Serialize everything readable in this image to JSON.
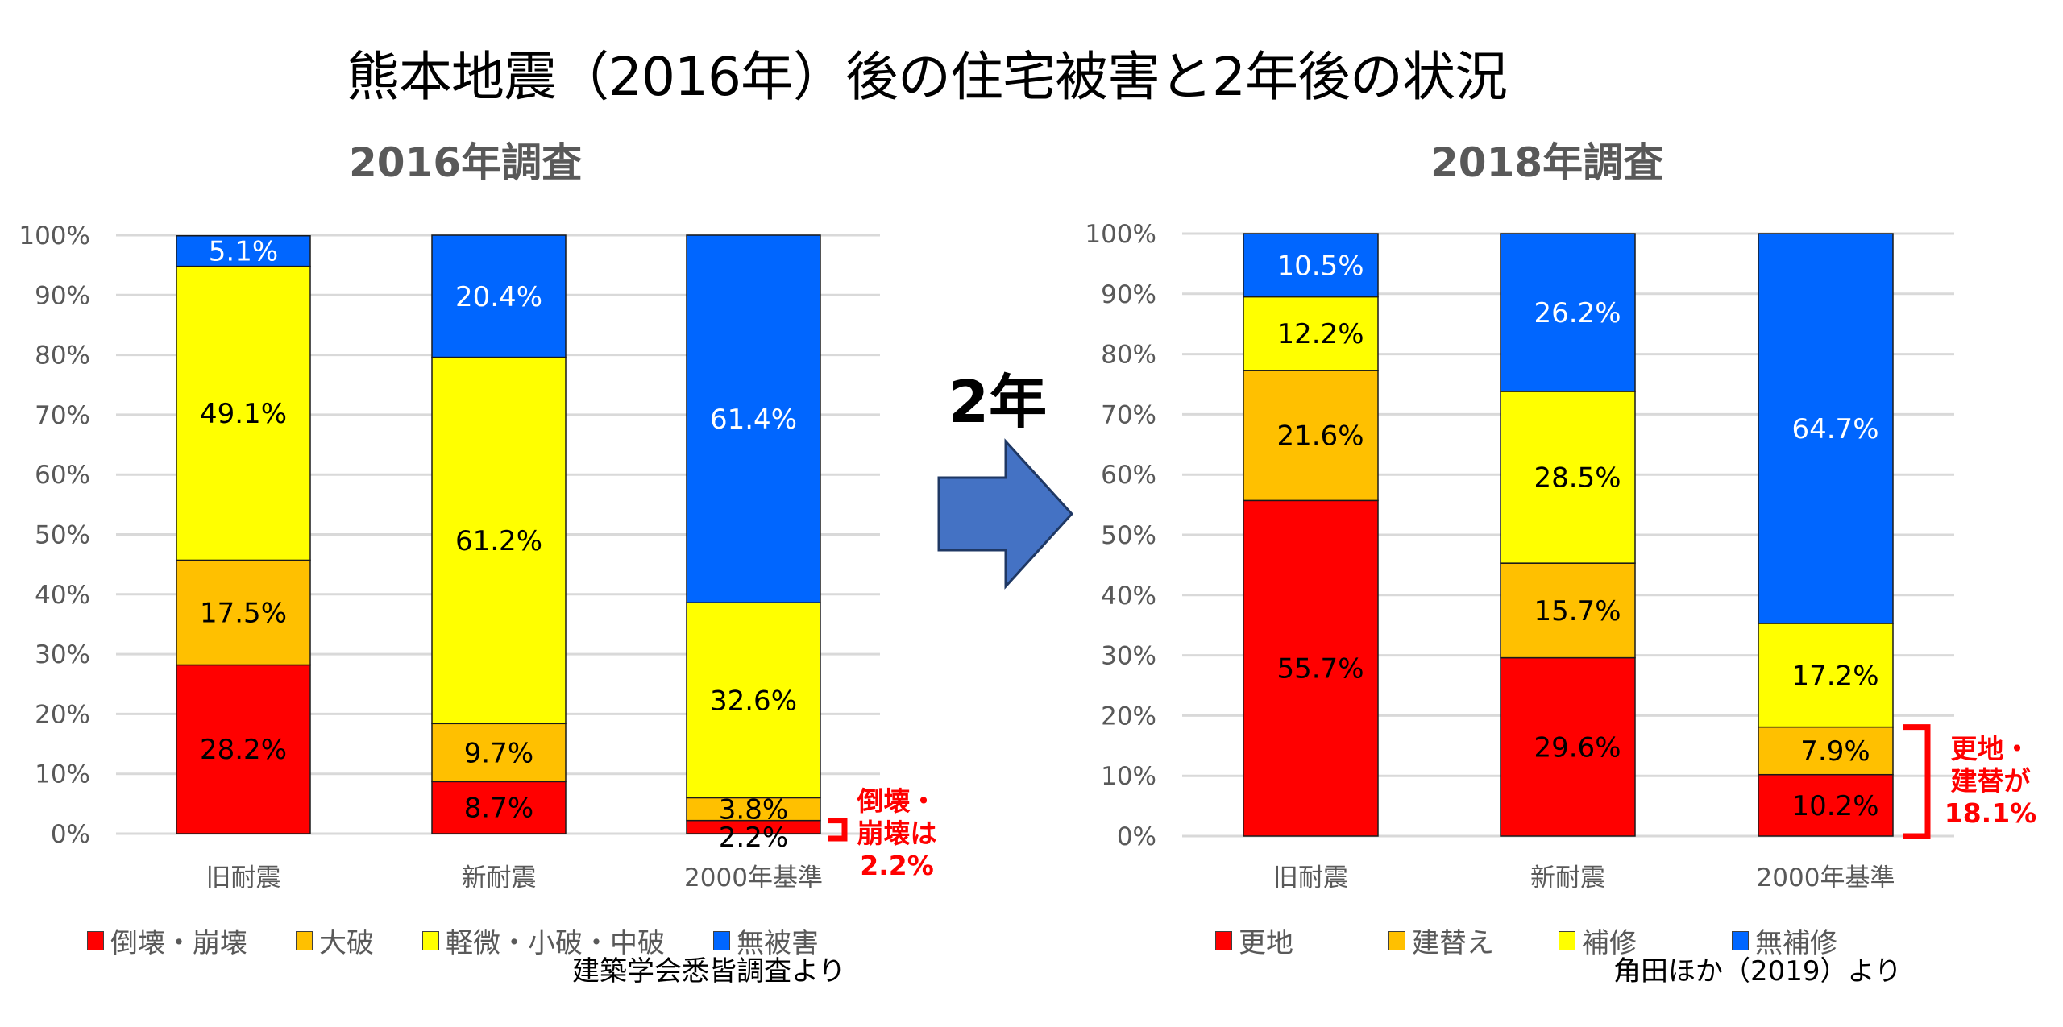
{
  "title": "熊本地震（2016年）後の住宅被害と2年後の状況",
  "transition_label": "2年",
  "colors": {
    "red": "#FF0000",
    "orange": "#FFC000",
    "yellow": "#FFFF00",
    "blue": "#0066FF",
    "grid": "#D9D9D9",
    "axis_text": "#595959",
    "annotation": "#FF0000",
    "arrow_fill": "#4472C4",
    "arrow_stroke": "#1F3864"
  },
  "chart_data": [
    {
      "type": "bar",
      "stacked": true,
      "title": "2016年調査",
      "categories": [
        "旧耐震",
        "新耐震",
        "2000年基準"
      ],
      "ylim": [
        0,
        100
      ],
      "yticks": [
        "0%",
        "10%",
        "20%",
        "30%",
        "40%",
        "50%",
        "60%",
        "70%",
        "80%",
        "90%",
        "100%"
      ],
      "grid": true,
      "legend_position": "bottom",
      "series": [
        {
          "name": "倒壊・崩壊",
          "color": "#FF0000",
          "values": [
            28.2,
            8.7,
            2.2
          ],
          "labels": [
            "28.2%",
            "8.7%",
            "2.2%"
          ],
          "label_color": "#000000"
        },
        {
          "name": "大破",
          "color": "#FFC000",
          "values": [
            17.5,
            9.7,
            3.8
          ],
          "labels": [
            "17.5%",
            "9.7%",
            "3.8%"
          ],
          "label_color": "#000000"
        },
        {
          "name": "軽微・小破・中破",
          "color": "#FFFF00",
          "values": [
            49.1,
            61.2,
            32.6
          ],
          "labels": [
            "49.1%",
            "61.2%",
            "32.6%"
          ],
          "label_color": "#000000"
        },
        {
          "name": "無被害",
          "color": "#0066FF",
          "values": [
            5.1,
            20.4,
            61.4
          ],
          "labels": [
            "5.1%",
            "20.4%",
            "61.4%"
          ],
          "label_color": "#FFFFFF"
        }
      ],
      "annotation": {
        "text": "倒壊・\n崩壊は\n2.2%",
        "category": "2000年基準",
        "range": [
          0,
          2.2
        ]
      },
      "source": "建築学会悉皆調査より"
    },
    {
      "type": "bar",
      "stacked": true,
      "title": "2018年調査",
      "categories": [
        "旧耐震",
        "新耐震",
        "2000年基準"
      ],
      "ylim": [
        0,
        100
      ],
      "yticks": [
        "0%",
        "10%",
        "20%",
        "30%",
        "40%",
        "50%",
        "60%",
        "70%",
        "80%",
        "90%",
        "100%"
      ],
      "grid": true,
      "legend_position": "bottom",
      "series": [
        {
          "name": "更地",
          "color": "#FF0000",
          "values": [
            55.7,
            29.6,
            10.2
          ],
          "labels": [
            "55.7%",
            "29.6%",
            "10.2%"
          ],
          "label_color": "#000000"
        },
        {
          "name": "建替え",
          "color": "#FFC000",
          "values": [
            21.6,
            15.7,
            7.9
          ],
          "labels": [
            "21.6%",
            "15.7%",
            "7.9%"
          ],
          "label_color": "#000000"
        },
        {
          "name": "補修",
          "color": "#FFFF00",
          "values": [
            12.2,
            28.5,
            17.2
          ],
          "labels": [
            "12.2%",
            "28.5%",
            "17.2%"
          ],
          "label_color": "#000000"
        },
        {
          "name": "無補修",
          "color": "#0066FF",
          "values": [
            10.5,
            26.2,
            64.7
          ],
          "labels": [
            "10.5%",
            "26.2%",
            "64.7%"
          ],
          "label_color": "#FFFFFF"
        }
      ],
      "annotation": {
        "text": "更地・\n建替が\n18.1%",
        "category": "2000年基準",
        "range": [
          0,
          18.1
        ]
      },
      "source": "角田ほか（2019）より"
    }
  ]
}
